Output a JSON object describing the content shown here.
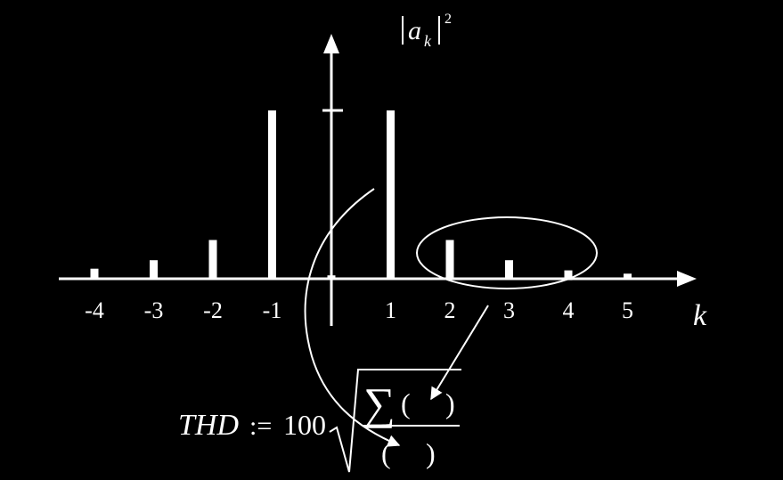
{
  "chart_data": {
    "type": "bar",
    "x": [
      -4,
      -3,
      -2,
      -1,
      0,
      1,
      2,
      3,
      4,
      5
    ],
    "values": [
      0.06,
      0.11,
      0.23,
      1.0,
      0.02,
      1.0,
      0.23,
      0.11,
      0.05,
      0.03
    ],
    "tick_labels": [
      "-4",
      "-3",
      "-2",
      "-1",
      "1",
      "2",
      "3",
      "4",
      "5"
    ],
    "xlabel": "k",
    "ylabel": {
      "base": "a",
      "sub": "k",
      "sup": "2"
    },
    "xlim": [
      -4.5,
      5.8
    ],
    "ylim": [
      0,
      1.6
    ],
    "grid": false,
    "legend": "none",
    "annotations": {
      "thd_label": "THD",
      "assign": ":=",
      "factor": "100",
      "sigma": "∑",
      "paren_open": "(",
      "paren_close": ")",
      "highlight": "ellipse around harmonics k = 2, 3, 4"
    },
    "colors": {
      "background": "#000000",
      "foreground": "#ffffff"
    }
  }
}
